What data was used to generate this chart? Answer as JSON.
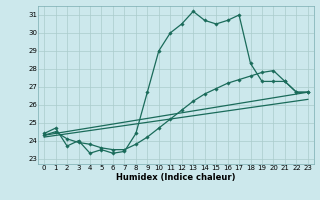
{
  "title": "",
  "xlabel": "Humidex (Indice chaleur)",
  "bg_color": "#cce8ec",
  "grid_color": "#aacccc",
  "line_color": "#1a6b5a",
  "xlim": [
    -0.5,
    23.5
  ],
  "ylim": [
    22.7,
    31.5
  ],
  "yticks": [
    23,
    24,
    25,
    26,
    27,
    28,
    29,
    30,
    31
  ],
  "xticks": [
    0,
    1,
    2,
    3,
    4,
    5,
    6,
    7,
    8,
    9,
    10,
    11,
    12,
    13,
    14,
    15,
    16,
    17,
    18,
    19,
    20,
    21,
    22,
    23
  ],
  "line1_x": [
    0,
    1,
    2,
    3,
    4,
    5,
    6,
    7,
    8,
    9,
    10,
    11,
    12,
    13,
    14,
    15,
    16,
    17,
    18,
    19,
    20,
    21,
    22,
    23
  ],
  "line1_y": [
    24.4,
    24.7,
    23.7,
    24.0,
    23.3,
    23.5,
    23.3,
    23.4,
    24.4,
    26.7,
    29.0,
    30.0,
    30.5,
    31.2,
    30.7,
    30.5,
    30.7,
    31.0,
    28.3,
    27.3,
    27.3,
    27.3,
    26.7,
    26.7
  ],
  "line2_x": [
    0,
    1,
    2,
    3,
    4,
    5,
    6,
    7,
    8,
    9,
    10,
    11,
    12,
    13,
    14,
    15,
    16,
    17,
    18,
    19,
    20,
    21,
    22,
    23
  ],
  "line2_y": [
    24.3,
    24.5,
    24.1,
    23.9,
    23.8,
    23.6,
    23.5,
    23.5,
    23.8,
    24.2,
    24.7,
    25.2,
    25.7,
    26.2,
    26.6,
    26.9,
    27.2,
    27.4,
    27.6,
    27.8,
    27.9,
    27.3,
    26.7,
    26.7
  ],
  "line3_x": [
    0,
    23
  ],
  "line3_y": [
    24.3,
    26.7
  ],
  "line4_x": [
    0,
    23
  ],
  "line4_y": [
    24.2,
    26.3
  ]
}
